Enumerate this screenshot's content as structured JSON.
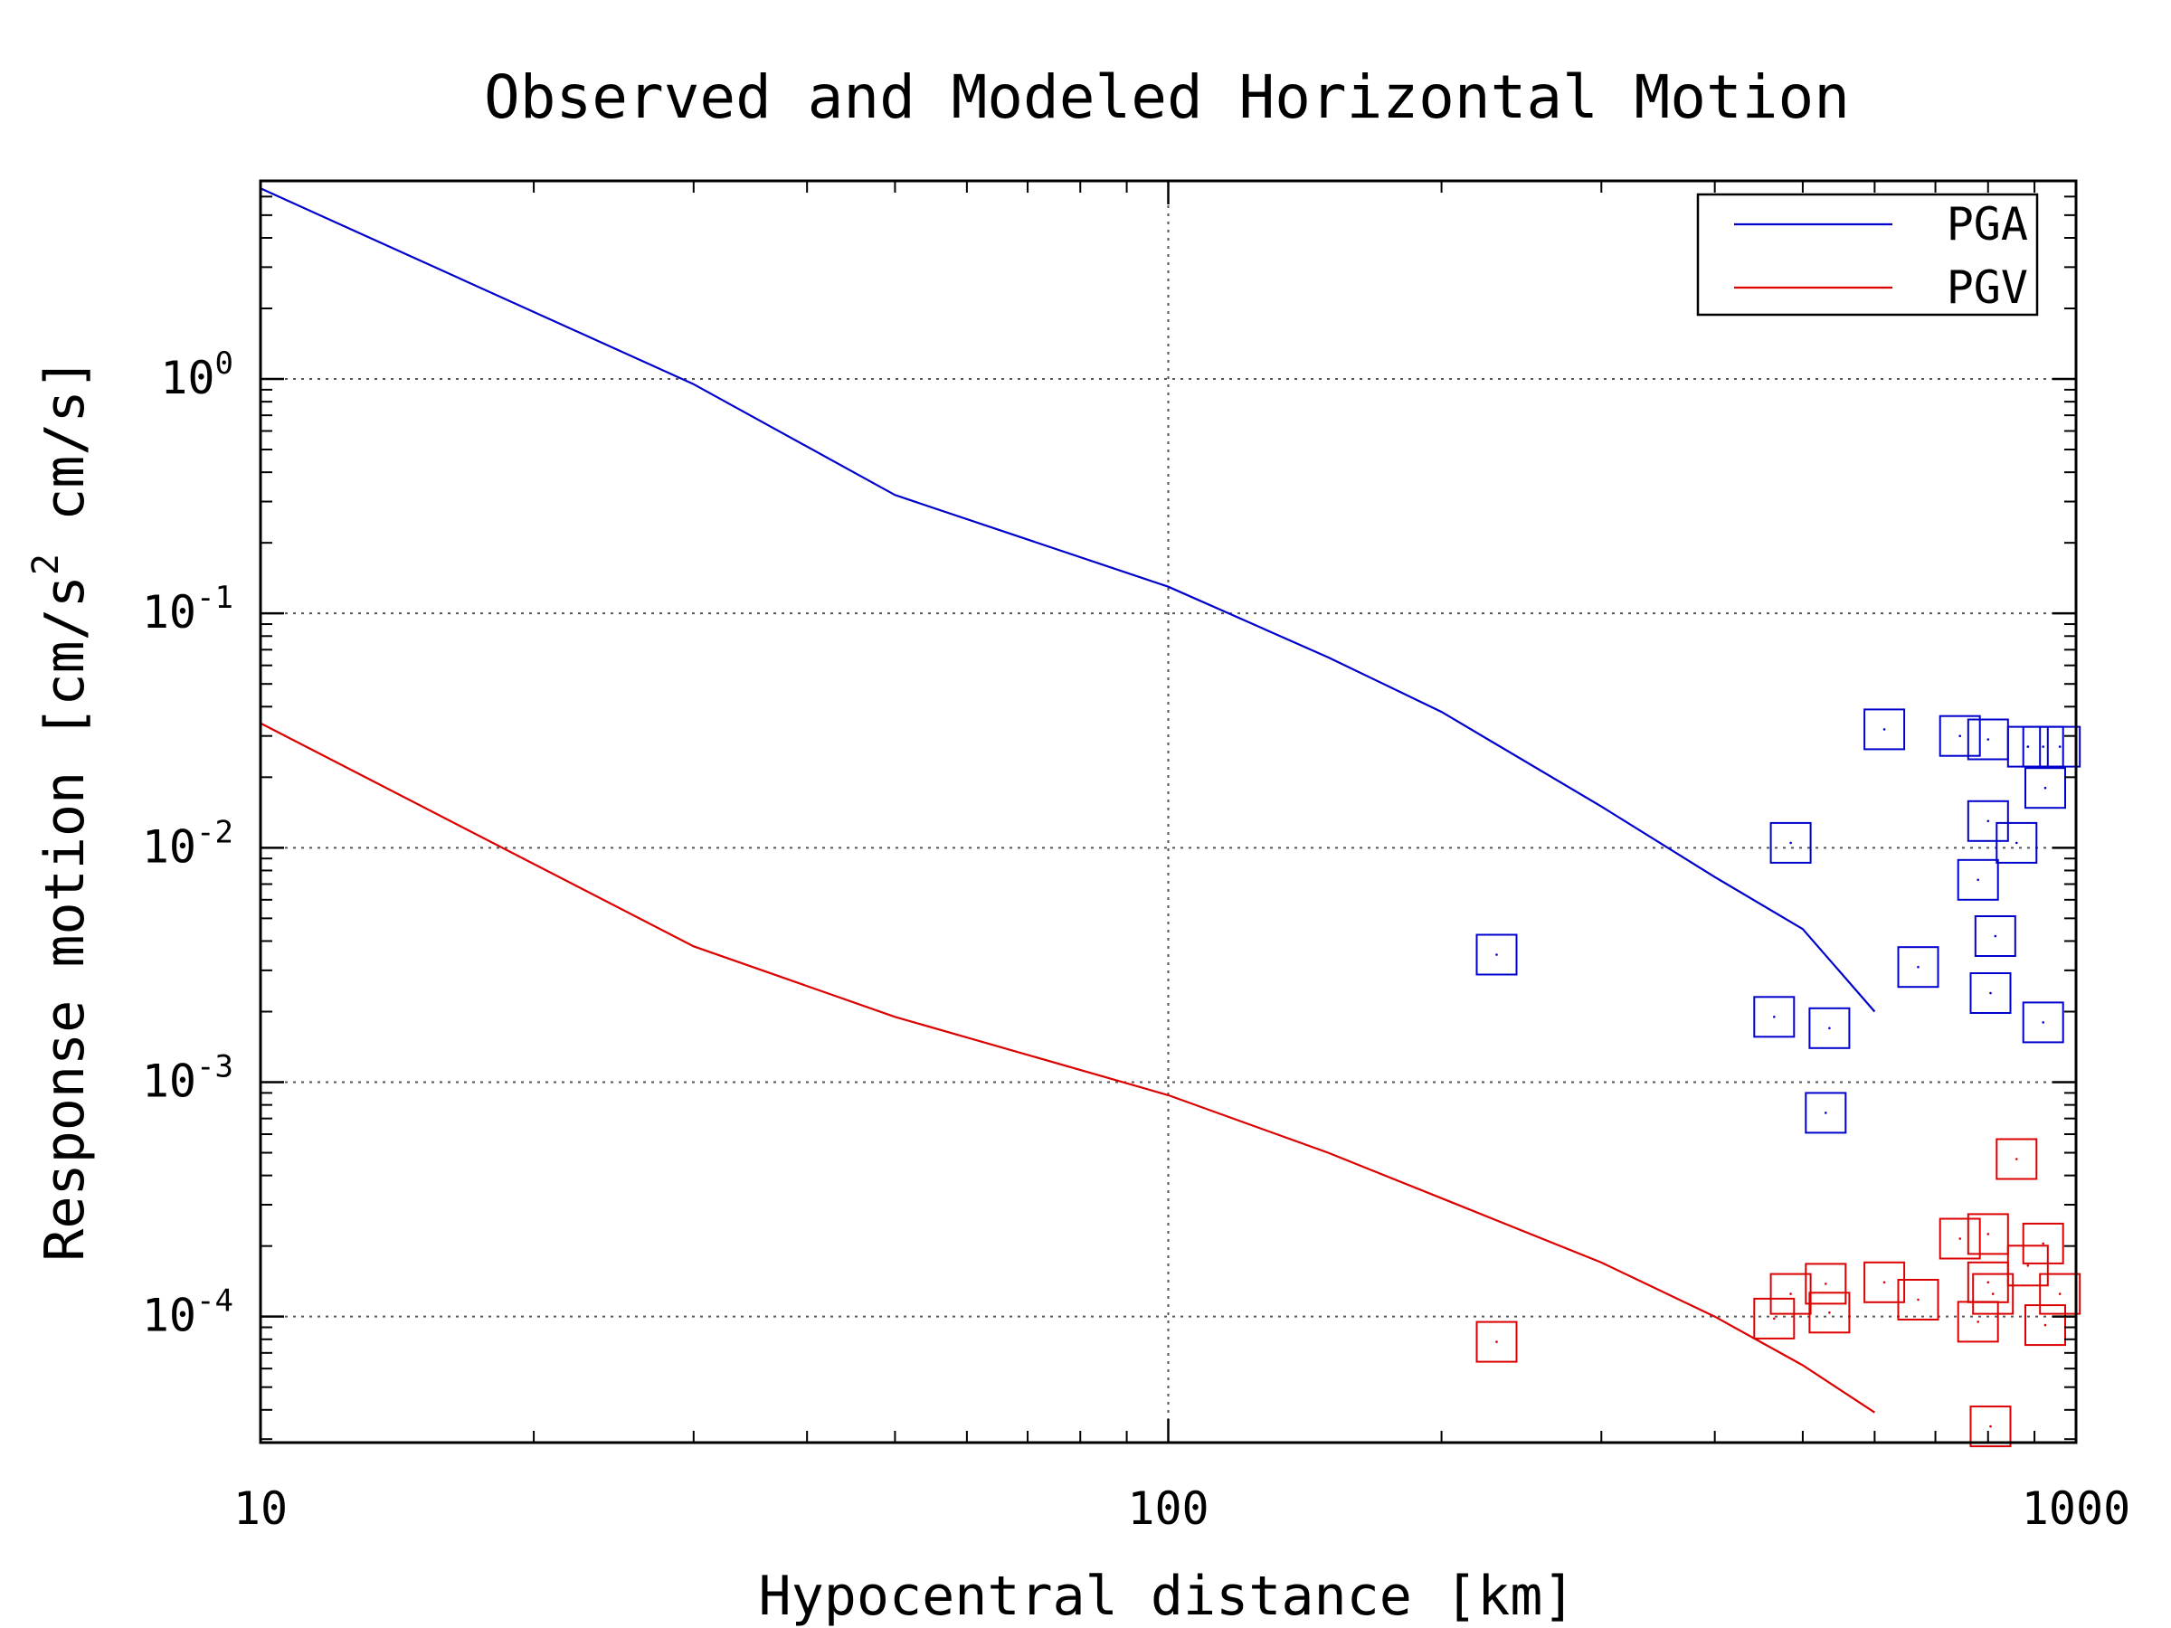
{
  "chart_data": {
    "type": "line",
    "title": "Observed and Modeled Horizontal Motion",
    "xlabel": "Hypocentral distance [km]",
    "ylabel": {
      "prefix": "Response motion [cm/s",
      "sup": "2",
      "suffix": " cm/s]"
    },
    "xscale": "log",
    "yscale": "log",
    "xlim": [
      10,
      1000
    ],
    "ylim": [
      2.9e-05,
      7
    ],
    "x_ticks": [
      {
        "value": 10,
        "label": "10"
      },
      {
        "value": 100,
        "label": "100"
      },
      {
        "value": 1000,
        "label": "1000"
      }
    ],
    "y_ticks": [
      {
        "value": 1,
        "base": "10",
        "exp": "0"
      },
      {
        "value": 0.1,
        "base": "10",
        "exp": "-1"
      },
      {
        "value": 0.01,
        "base": "10",
        "exp": "-2"
      },
      {
        "value": 0.001,
        "base": "10",
        "exp": "-3"
      },
      {
        "value": 0.0001,
        "base": "10",
        "exp": "-4"
      }
    ],
    "grid": true,
    "legend_position": "top-right",
    "series": [
      {
        "name": "PGA",
        "color": "#0000cc",
        "line": [
          [
            10,
            6.5
          ],
          [
            30,
            0.95
          ],
          [
            50,
            0.32
          ],
          [
            100,
            0.13
          ],
          [
            150,
            0.065
          ],
          [
            200,
            0.038
          ],
          [
            300,
            0.015
          ],
          [
            400,
            0.0075
          ],
          [
            500,
            0.0045
          ],
          [
            600,
            0.002
          ]
        ],
        "observed": [
          [
            230,
            0.0035
          ],
          [
            465,
            0.0019
          ],
          [
            485,
            0.0105
          ],
          [
            535,
            0.0017
          ],
          [
            530,
            0.00074
          ],
          [
            615,
            0.032
          ],
          [
            670,
            0.0031
          ],
          [
            745,
            0.03
          ],
          [
            780,
            0.0073
          ],
          [
            800,
            0.029
          ],
          [
            800,
            0.013
          ],
          [
            805,
            0.0024
          ],
          [
            815,
            0.0042
          ],
          [
            860,
            0.0105
          ],
          [
            885,
            0.027
          ],
          [
            925,
            0.018
          ],
          [
            920,
            0.0018
          ],
          [
            920,
            0.027
          ],
          [
            960,
            0.027
          ]
        ]
      },
      {
        "name": "PGV",
        "color": "#dd0000",
        "line": [
          [
            10,
            0.034
          ],
          [
            30,
            0.0038
          ],
          [
            50,
            0.0019
          ],
          [
            100,
            0.00088
          ],
          [
            150,
            0.0005
          ],
          [
            200,
            0.00032
          ],
          [
            300,
            0.00017
          ],
          [
            400,
            0.0001
          ],
          [
            500,
            6.2e-05
          ],
          [
            600,
            3.9e-05
          ]
        ],
        "observed": [
          [
            230,
            7.8e-05
          ],
          [
            465,
            9.8e-05
          ],
          [
            485,
            0.000125
          ],
          [
            530,
            0.000138
          ],
          [
            535,
            0.000104
          ],
          [
            615,
            0.00014
          ],
          [
            670,
            0.000118
          ],
          [
            745,
            0.000215
          ],
          [
            780,
            9.5e-05
          ],
          [
            800,
            0.000225
          ],
          [
            800,
            0.00014
          ],
          [
            810,
            0.000125
          ],
          [
            805,
            3.4e-05
          ],
          [
            860,
            0.00047
          ],
          [
            885,
            0.000165
          ],
          [
            920,
            0.000205
          ],
          [
            925,
            9.2e-05
          ],
          [
            960,
            0.000125
          ]
        ]
      }
    ]
  }
}
